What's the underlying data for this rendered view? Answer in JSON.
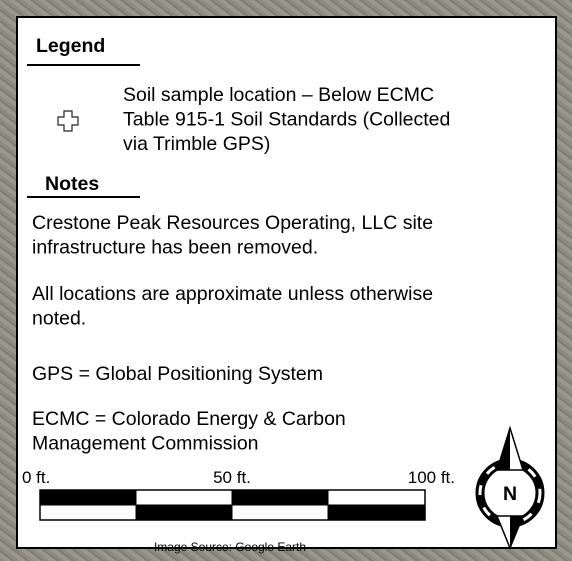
{
  "legend": {
    "title": "Legend",
    "items": [
      {
        "label_lines": [
          "Soil sample location – Below ECMC",
          "Table 915-1 Soil Standards (Collected",
          "via Trimble GPS)"
        ]
      }
    ]
  },
  "notes": {
    "title": "Notes",
    "items": [
      [
        "Crestone Peak Resources Operating, LLC site",
        "infrastructure has been removed."
      ],
      [
        "All locations are approximate unless otherwise",
        "noted."
      ],
      [
        "GPS = Global Positioning System"
      ],
      [
        "ECMC = Colorado Energy & Carbon",
        "Management Commission"
      ]
    ]
  },
  "scale_bar": {
    "labels": [
      "0 ft.",
      "50 ft.",
      "100 ft."
    ]
  },
  "north_arrow": {
    "label": "N"
  },
  "image_source": "Image Source:  Google Earth"
}
